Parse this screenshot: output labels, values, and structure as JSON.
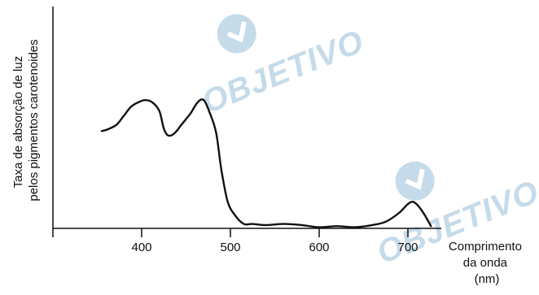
{
  "chart_data": {
    "type": "line",
    "xlabel": [
      "Comprimento",
      "da onda",
      "(nm)"
    ],
    "ylabel": [
      "Taxa de absorção de luz",
      "pelos pigmentos carotenoides"
    ],
    "x_ticks": [
      400,
      500,
      600,
      700
    ],
    "xlim": [
      300,
      750
    ],
    "ylim": [
      0,
      1
    ],
    "grid": false,
    "series": [
      {
        "x": [
          355,
          363,
          372,
          380,
          388,
          396,
          404,
          412,
          420,
          425,
          430,
          437,
          445,
          455,
          463,
          470,
          477,
          484,
          490,
          497,
          505,
          515,
          525,
          540,
          560,
          580,
          600,
          620,
          640,
          660,
          675,
          690,
          700,
          706,
          712,
          719,
          726
        ],
        "y": [
          0.44,
          0.45,
          0.47,
          0.51,
          0.55,
          0.57,
          0.58,
          0.57,
          0.53,
          0.45,
          0.42,
          0.43,
          0.47,
          0.52,
          0.57,
          0.58,
          0.52,
          0.43,
          0.26,
          0.12,
          0.06,
          0.02,
          0.02,
          0.015,
          0.02,
          0.015,
          0.005,
          0.01,
          0.005,
          0.015,
          0.03,
          0.07,
          0.11,
          0.12,
          0.1,
          0.06,
          0.01
        ]
      }
    ]
  },
  "watermark": {
    "text": "OBJETIVO",
    "color": "#c5dbea"
  }
}
